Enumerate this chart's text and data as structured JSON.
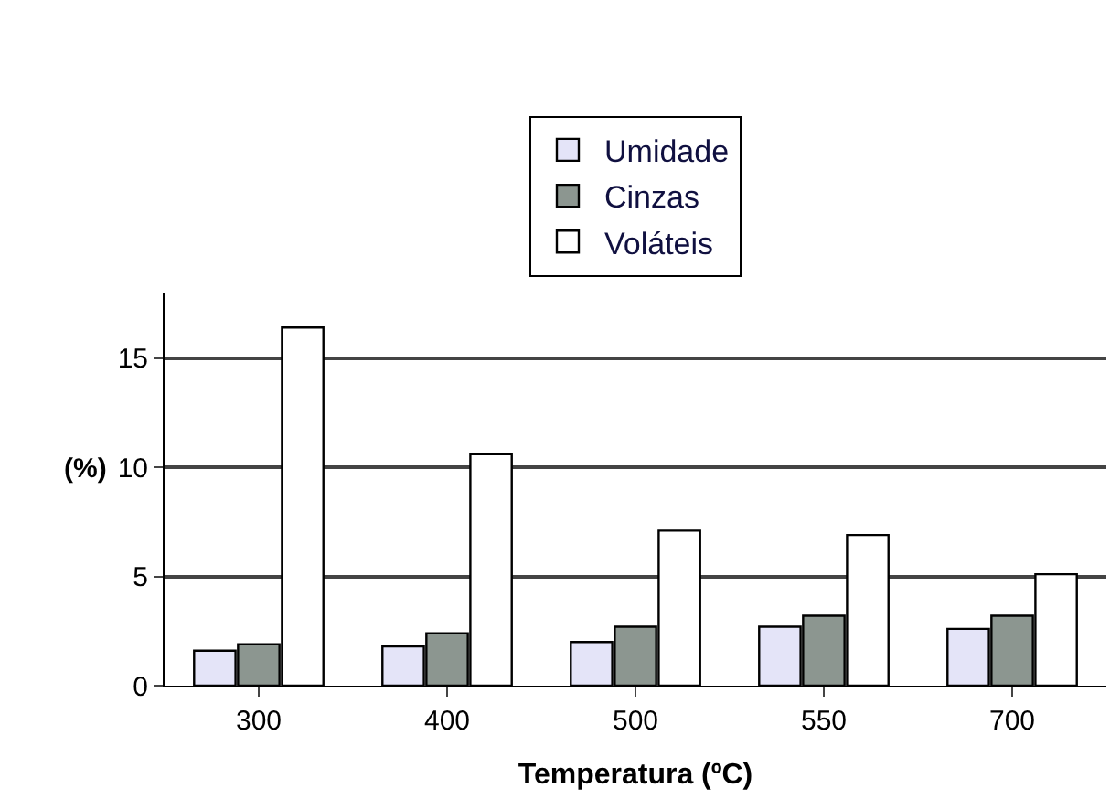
{
  "chart_data": {
    "type": "bar",
    "xlabel": "Temperatura (ºC)",
    "ylabel": "(%)",
    "categories": [
      "300",
      "400",
      "500",
      "550",
      "700"
    ],
    "series": [
      {
        "name": "Umidade",
        "color": "#e4e4f8",
        "values": [
          1.6,
          1.8,
          2.0,
          2.7,
          2.6
        ]
      },
      {
        "name": "Cinzas",
        "color": "#8c9690",
        "values": [
          1.9,
          2.4,
          2.7,
          3.2,
          3.2
        ]
      },
      {
        "name": "Voláteis",
        "color": "#ffffff",
        "values": [
          16.4,
          10.6,
          7.1,
          6.9,
          5.1
        ]
      }
    ],
    "ylim": [
      0,
      18
    ],
    "yticks": [
      0,
      5,
      10,
      15
    ],
    "grid": "y",
    "legend": "top"
  }
}
